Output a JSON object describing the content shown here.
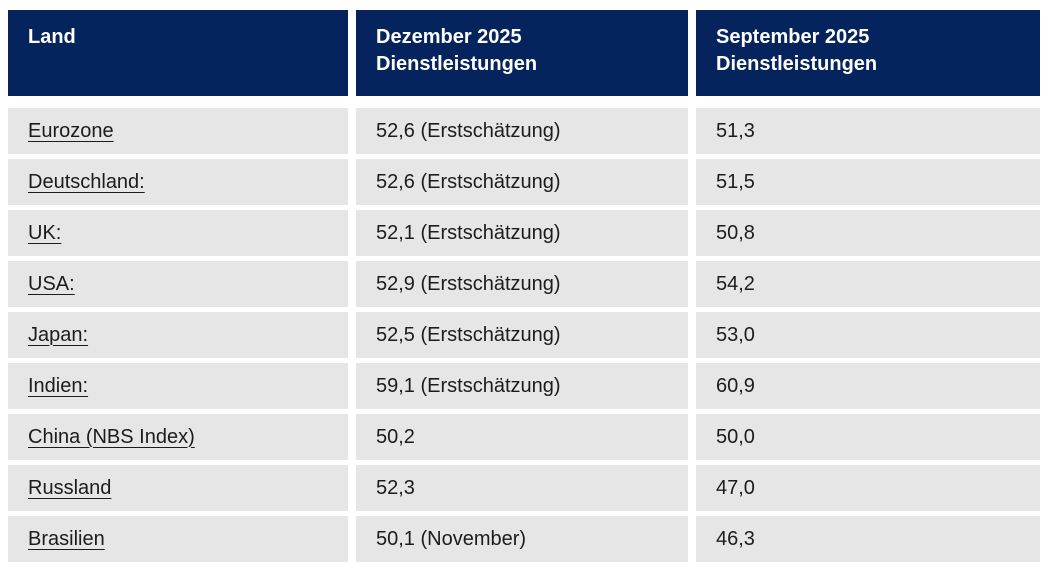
{
  "colors": {
    "page_bg": "#ffffff",
    "header_bg": "#05235c",
    "header_text": "#ffffff",
    "row_bg": "#e6e6e6",
    "body_text": "#1c1c1c"
  },
  "table": {
    "columns": [
      {
        "id": "land",
        "label": "Land"
      },
      {
        "id": "dezember",
        "label": "Dezember 2025\nDienstleistungen"
      },
      {
        "id": "september",
        "label": "September 2025\nDienstleistungen"
      }
    ],
    "rows": [
      {
        "land": "Eurozone",
        "dezember": "52,6 (Erstschätzung)",
        "september": "51,3"
      },
      {
        "land": "Deutschland:",
        "dezember": "52,6 (Erstschätzung)",
        "september": "51,5"
      },
      {
        "land": "UK:",
        "dezember": "52,1 (Erstschätzung)",
        "september": "50,8"
      },
      {
        "land": "USA:",
        "dezember": "52,9 (Erstschätzung)",
        "september": "54,2"
      },
      {
        "land": "Japan:",
        "dezember": "52,5 (Erstschätzung)",
        "september": "53,0"
      },
      {
        "land": "Indien:",
        "dezember": "59,1 (Erstschätzung)",
        "september": "60,9"
      },
      {
        "land": "China (NBS Index)",
        "dezember": "50,2",
        "september": "50,0"
      },
      {
        "land": "Russland",
        "dezember": "52,3",
        "september": "47,0"
      },
      {
        "land": "Brasilien",
        "dezember": "50,1 (November)",
        "september": "46,3"
      }
    ]
  },
  "chart_data": {
    "type": "table",
    "title": "",
    "columns": [
      "Land",
      "Dezember 2025 Dienstleistungen",
      "September 2025 Dienstleistungen"
    ],
    "rows": [
      [
        "Eurozone",
        "52,6 (Erstschätzung)",
        "51,3"
      ],
      [
        "Deutschland:",
        "52,6 (Erstschätzung)",
        "51,5"
      ],
      [
        "UK:",
        "52,1 (Erstschätzung)",
        "50,8"
      ],
      [
        "USA:",
        "52,9 (Erstschätzung)",
        "54,2"
      ],
      [
        "Japan:",
        "52,5 (Erstschätzung)",
        "53,0"
      ],
      [
        "Indien:",
        "59,1 (Erstschätzung)",
        "60,9"
      ],
      [
        "China (NBS Index)",
        "50,2",
        "50,0"
      ],
      [
        "Russland",
        "52,3",
        "47,0"
      ],
      [
        "Brasilien",
        "50,1 (November)",
        "46,3"
      ]
    ],
    "values_dezember_2025": [
      52.6,
      52.6,
      52.1,
      52.9,
      52.5,
      59.1,
      50.2,
      52.3,
      50.1
    ],
    "values_september_2025": [
      51.3,
      51.5,
      50.8,
      54.2,
      53.0,
      60.9,
      50.0,
      47.0,
      46.3
    ]
  }
}
